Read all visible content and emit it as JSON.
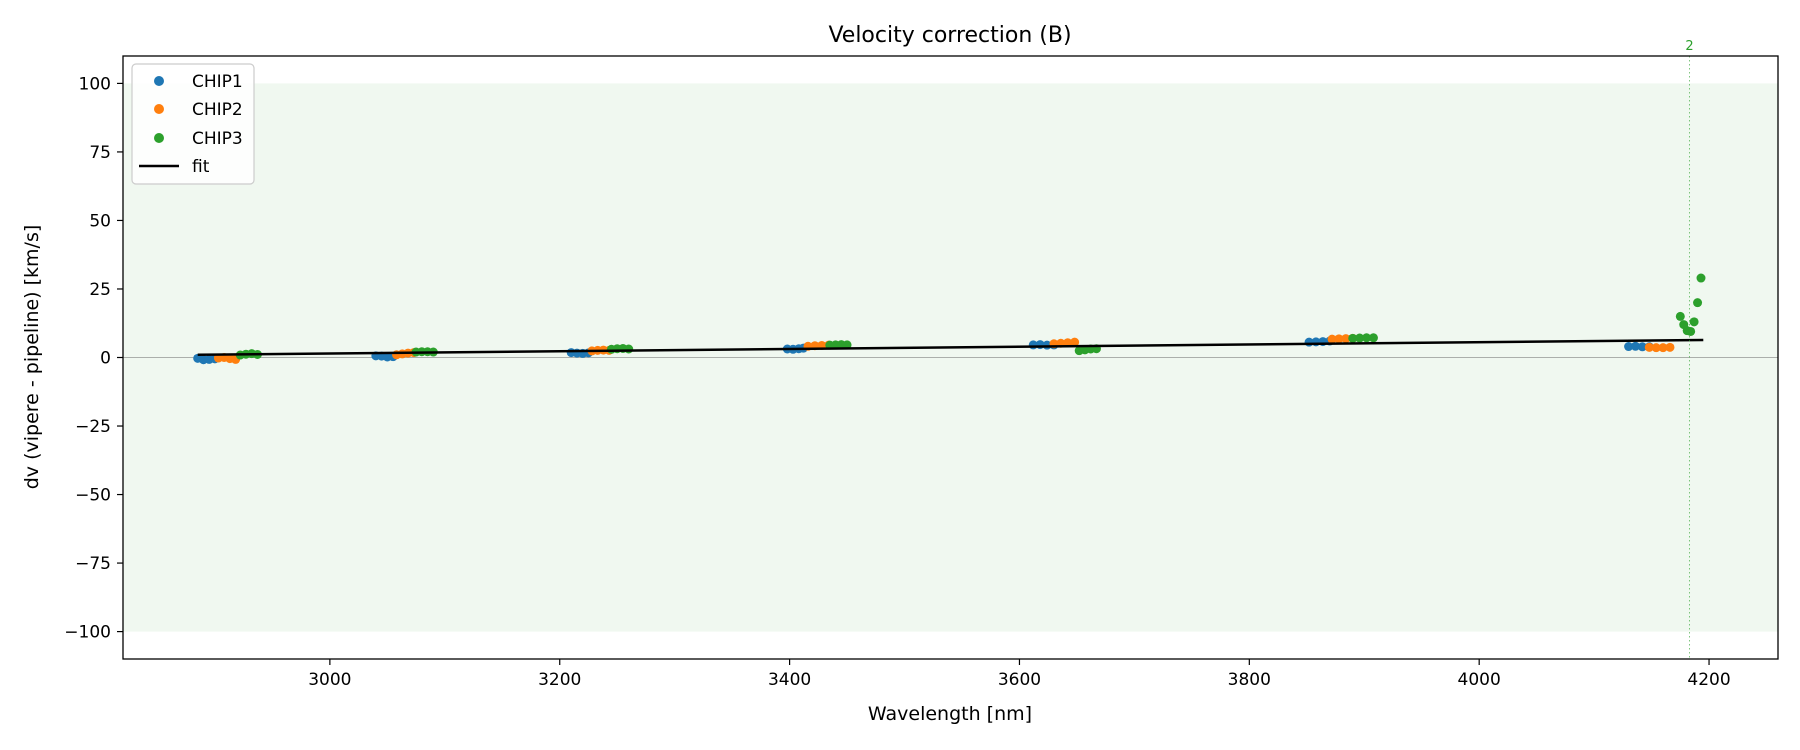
{
  "chart_data": {
    "type": "scatter",
    "title": "Velocity correction (B)",
    "xlabel": "Wavelength [nm]",
    "ylabel": "dv (vipere - pipeline) [km/s]",
    "xlim": [
      2820,
      4260
    ],
    "ylim": [
      -110,
      110
    ],
    "xticks": [
      3000,
      3200,
      3400,
      3600,
      3800,
      4000,
      4200
    ],
    "xtick_labels": [
      "3000",
      "3200",
      "3400",
      "3600",
      "3800",
      "4000",
      "4200"
    ],
    "yticks": [
      100,
      75,
      50,
      25,
      0,
      -25,
      -50,
      -75,
      -100
    ],
    "ytick_labels": [
      "100",
      "75",
      "50",
      "25",
      "0",
      "−25",
      "−50",
      "−75",
      "−100"
    ],
    "grid": false,
    "legend_position": "upper-left",
    "colors": {
      "CHIP1": "#1f77b4",
      "CHIP2": "#ff7f0e",
      "CHIP3": "#2ca02c",
      "fit": "#000000",
      "band": "#2ca02c"
    },
    "shaded_band": {
      "y_range": [
        -100,
        100
      ],
      "opacity": 0.07
    },
    "zero_line": 0,
    "series": [
      {
        "name": "CHIP1",
        "points": [
          [
            2885,
            -0.3
          ],
          [
            2890,
            -0.8
          ],
          [
            2895,
            -0.7
          ],
          [
            2900,
            -0.5
          ],
          [
            3040,
            0.6
          ],
          [
            3045,
            0.5
          ],
          [
            3050,
            0.2
          ],
          [
            3055,
            0.3
          ],
          [
            3210,
            1.8
          ],
          [
            3215,
            1.6
          ],
          [
            3220,
            1.5
          ],
          [
            3225,
            1.7
          ],
          [
            3398,
            3.1
          ],
          [
            3403,
            3.0
          ],
          [
            3408,
            3.2
          ],
          [
            3412,
            3.4
          ],
          [
            3612,
            4.6
          ],
          [
            3618,
            4.7
          ],
          [
            3624,
            4.5
          ],
          [
            3630,
            4.6
          ],
          [
            3852,
            5.6
          ],
          [
            3858,
            5.7
          ],
          [
            3864,
            5.8
          ],
          [
            3870,
            6.0
          ],
          [
            4130,
            4.0
          ],
          [
            4136,
            4.1
          ],
          [
            4142,
            3.9
          ],
          [
            4148,
            3.9
          ]
        ]
      },
      {
        "name": "CHIP2",
        "points": [
          [
            2903,
            -0.2
          ],
          [
            2908,
            0.0
          ],
          [
            2913,
            -0.4
          ],
          [
            2918,
            -0.7
          ],
          [
            3058,
            1.0
          ],
          [
            3063,
            1.3
          ],
          [
            3068,
            1.6
          ],
          [
            3073,
            1.8
          ],
          [
            3228,
            2.4
          ],
          [
            3233,
            2.6
          ],
          [
            3238,
            2.7
          ],
          [
            3243,
            2.6
          ],
          [
            3416,
            4.1
          ],
          [
            3422,
            4.3
          ],
          [
            3428,
            4.4
          ],
          [
            3434,
            4.5
          ],
          [
            3630,
            5.0
          ],
          [
            3636,
            5.2
          ],
          [
            3642,
            5.4
          ],
          [
            3648,
            5.6
          ],
          [
            3872,
            6.7
          ],
          [
            3878,
            6.8
          ],
          [
            3884,
            6.9
          ],
          [
            3890,
            7.0
          ],
          [
            4148,
            3.7
          ],
          [
            4154,
            3.6
          ],
          [
            4160,
            3.6
          ],
          [
            4166,
            3.7
          ]
        ]
      },
      {
        "name": "CHIP3",
        "points": [
          [
            2922,
            0.9
          ],
          [
            2927,
            1.2
          ],
          [
            2932,
            1.4
          ],
          [
            2937,
            1.1
          ],
          [
            3075,
            2.0
          ],
          [
            3080,
            2.1
          ],
          [
            3085,
            2.1
          ],
          [
            3090,
            2.0
          ],
          [
            3245,
            3.0
          ],
          [
            3250,
            3.2
          ],
          [
            3255,
            3.3
          ],
          [
            3260,
            3.1
          ],
          [
            3435,
            4.5
          ],
          [
            3440,
            4.6
          ],
          [
            3445,
            4.7
          ],
          [
            3450,
            4.6
          ],
          [
            3652,
            2.5
          ],
          [
            3657,
            2.8
          ],
          [
            3662,
            3.1
          ],
          [
            3667,
            3.2
          ],
          [
            3890,
            7.0
          ],
          [
            3896,
            7.1
          ],
          [
            3902,
            7.2
          ],
          [
            3908,
            7.2
          ],
          [
            4175,
            15.0
          ],
          [
            4178,
            12.0
          ],
          [
            4181,
            9.8
          ],
          [
            4184,
            9.5
          ],
          [
            4187,
            13.0
          ],
          [
            4190,
            20.0
          ],
          [
            4193,
            29.0
          ]
        ]
      }
    ],
    "fit": {
      "name": "fit",
      "points": [
        [
          2885,
          1.0
        ],
        [
          4195,
          6.4
        ]
      ]
    },
    "marker_line": {
      "x": 4183,
      "label": "2"
    }
  }
}
